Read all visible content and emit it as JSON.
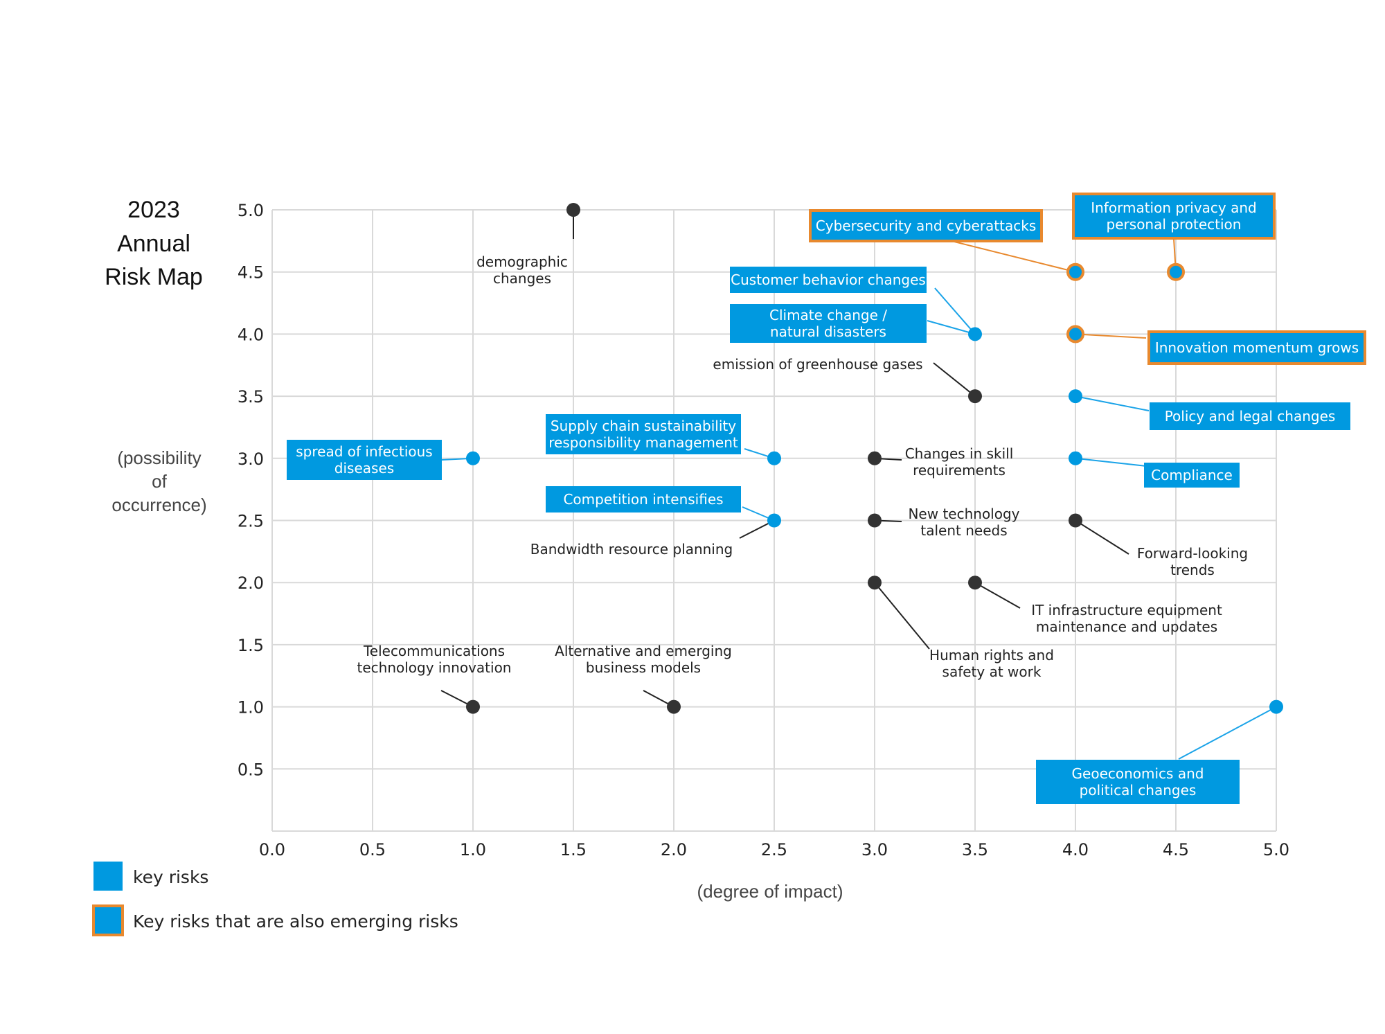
{
  "title_lines": [
    "2023",
    "Annual",
    "Risk Map"
  ],
  "y_axis_label_lines": [
    "(possibility",
    "of",
    "occurrence)"
  ],
  "x_axis_label": "(degree of impact)",
  "legend": [
    {
      "label": "key risks",
      "kind": "key"
    },
    {
      "label": "Key risks that are also emerging risks",
      "kind": "emerging"
    }
  ],
  "colors": {
    "key": "#0099e0",
    "emerging_border": "#e8892e",
    "other": "#333333",
    "grid": "#d9d9d9",
    "key_line": "#1aa3e8",
    "other_line": "#222222"
  },
  "chart_data": {
    "type": "scatter",
    "title": "2023 Annual Risk Map",
    "xlabel": "(degree of impact)",
    "ylabel": "(possibility of occurrence)",
    "xlim": [
      0,
      5
    ],
    "ylim": [
      0,
      5
    ],
    "x_ticks": [
      "0.0",
      "0.5",
      "1.0",
      "1.5",
      "2.0",
      "2.5",
      "3.0",
      "3.5",
      "4.0",
      "4.5",
      "5.0"
    ],
    "y_ticks": [
      "5.0",
      "4.5",
      "4.0",
      "3.5",
      "3.0",
      "2.5",
      "2.0",
      "1.5",
      "1.0",
      "0.5"
    ],
    "grid": true,
    "legend_position": "bottom-left",
    "points": [
      {
        "label": "demographic\nchanges",
        "x": 1.5,
        "y": 5.0,
        "category": "other"
      },
      {
        "label": "Cybersecurity and cyberattacks",
        "x": 4.0,
        "y": 4.5,
        "category": "emerging"
      },
      {
        "label": "Information privacy and\npersonal protection",
        "x": 4.5,
        "y": 4.5,
        "category": "emerging"
      },
      {
        "label": "Customer behavior changes",
        "x": 3.5,
        "y": 4.0,
        "category": "key"
      },
      {
        "label": "Climate change /\nnatural disasters",
        "x": 3.5,
        "y": 4.0,
        "category": "key"
      },
      {
        "label": "Innovation momentum grows",
        "x": 4.0,
        "y": 4.0,
        "category": "emerging"
      },
      {
        "label": "emission of greenhouse gases",
        "x": 3.5,
        "y": 3.5,
        "category": "other"
      },
      {
        "label": "Policy and legal changes",
        "x": 4.0,
        "y": 3.5,
        "category": "key"
      },
      {
        "label": "spread of infectious\ndiseases",
        "x": 1.0,
        "y": 3.0,
        "category": "key"
      },
      {
        "label": "Supply chain sustainability\nresponsibility management",
        "x": 2.5,
        "y": 3.0,
        "category": "key"
      },
      {
        "label": "Changes in skill\nrequirements",
        "x": 3.0,
        "y": 3.0,
        "category": "other"
      },
      {
        "label": "Compliance",
        "x": 4.0,
        "y": 3.0,
        "category": "key"
      },
      {
        "label": "Competition intensifies",
        "x": 2.5,
        "y": 2.5,
        "category": "key"
      },
      {
        "label": "Bandwidth resource planning",
        "x": 2.5,
        "y": 2.5,
        "category": "other"
      },
      {
        "label": "New technology\ntalent needs",
        "x": 3.0,
        "y": 2.5,
        "category": "other"
      },
      {
        "label": "Forward-looking\ntrends",
        "x": 4.0,
        "y": 2.5,
        "category": "other"
      },
      {
        "label": "Human rights and\nsafety at work",
        "x": 3.0,
        "y": 2.0,
        "category": "other"
      },
      {
        "label": "IT infrastructure equipment\nmaintenance and updates",
        "x": 3.5,
        "y": 2.0,
        "category": "other"
      },
      {
        "label": "Telecommunications\ntechnology innovation",
        "x": 1.0,
        "y": 1.0,
        "category": "other"
      },
      {
        "label": "Alternative and emerging\nbusiness models",
        "x": 2.0,
        "y": 1.0,
        "category": "other"
      },
      {
        "label": "Geoeconomics and\npolitical changes",
        "x": 5.0,
        "y": 1.0,
        "category": "key"
      }
    ]
  }
}
